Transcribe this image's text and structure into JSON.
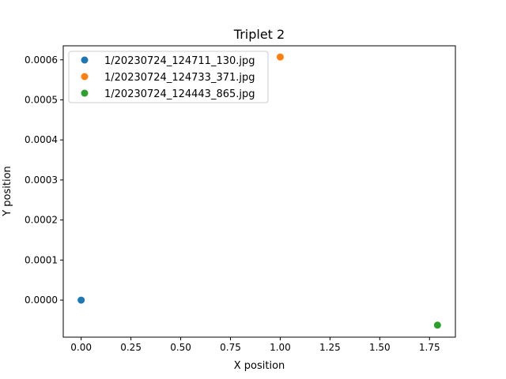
{
  "chart_data": {
    "type": "scatter",
    "title": "Triplet 2",
    "xlabel": "X position",
    "ylabel": "Y position",
    "xlim": [
      -0.09,
      1.88
    ],
    "ylim": [
      -9.25e-05,
      0.000635
    ],
    "xticks": [
      "0.00",
      "0.25",
      "0.50",
      "0.75",
      "1.00",
      "1.25",
      "1.50",
      "1.75"
    ],
    "yticks": [
      "0.0000",
      "0.0001",
      "0.0002",
      "0.0003",
      "0.0004",
      "0.0005",
      "0.0006"
    ],
    "grid": false,
    "legend_position": "top-left",
    "series": [
      {
        "name": "1/20230724_124711_130.jpg",
        "color": "#1f77b4",
        "x": [
          0.0
        ],
        "y": [
          0.0
        ]
      },
      {
        "name": "1/20230724_124733_371.jpg",
        "color": "#ff7f0e",
        "x": [
          1.0
        ],
        "y": [
          0.000607
        ]
      },
      {
        "name": "1/20230724_124443_865.jpg",
        "color": "#2ca02c",
        "x": [
          1.79
        ],
        "y": [
          -6.25e-05
        ]
      }
    ]
  }
}
